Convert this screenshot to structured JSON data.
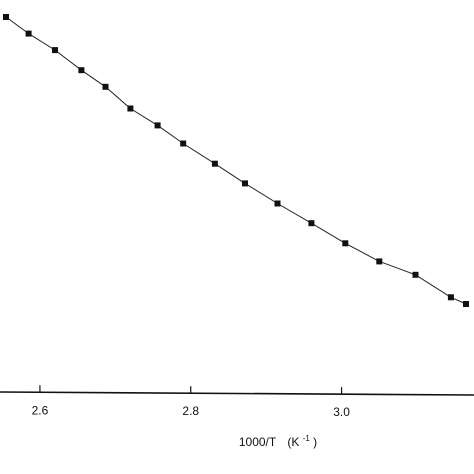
{
  "chart_data": {
    "type": "line",
    "xlabel": "1000/T",
    "xunit_base": "(K",
    "xunit_sup": "-1",
    "xunit_close": ")",
    "x_ticks": [
      2.6,
      2.8,
      3.0
    ],
    "x_tick_labels": [
      "2.6",
      "2.8",
      "3.0"
    ],
    "xlim": [
      2.555,
      3.165
    ],
    "ylim": [
      0,
      1
    ],
    "grid": false,
    "series": [
      {
        "marker": "square",
        "x": [
          2.555,
          2.585,
          2.62,
          2.655,
          2.687,
          2.72,
          2.756,
          2.79,
          2.832,
          2.872,
          2.915,
          2.96,
          3.005,
          3.05,
          3.098,
          3.145,
          3.165
        ],
        "y": [
          0.958,
          0.916,
          0.874,
          0.823,
          0.781,
          0.726,
          0.683,
          0.637,
          0.586,
          0.536,
          0.485,
          0.435,
          0.384,
          0.338,
          0.304,
          0.247,
          0.23
        ]
      }
    ]
  }
}
